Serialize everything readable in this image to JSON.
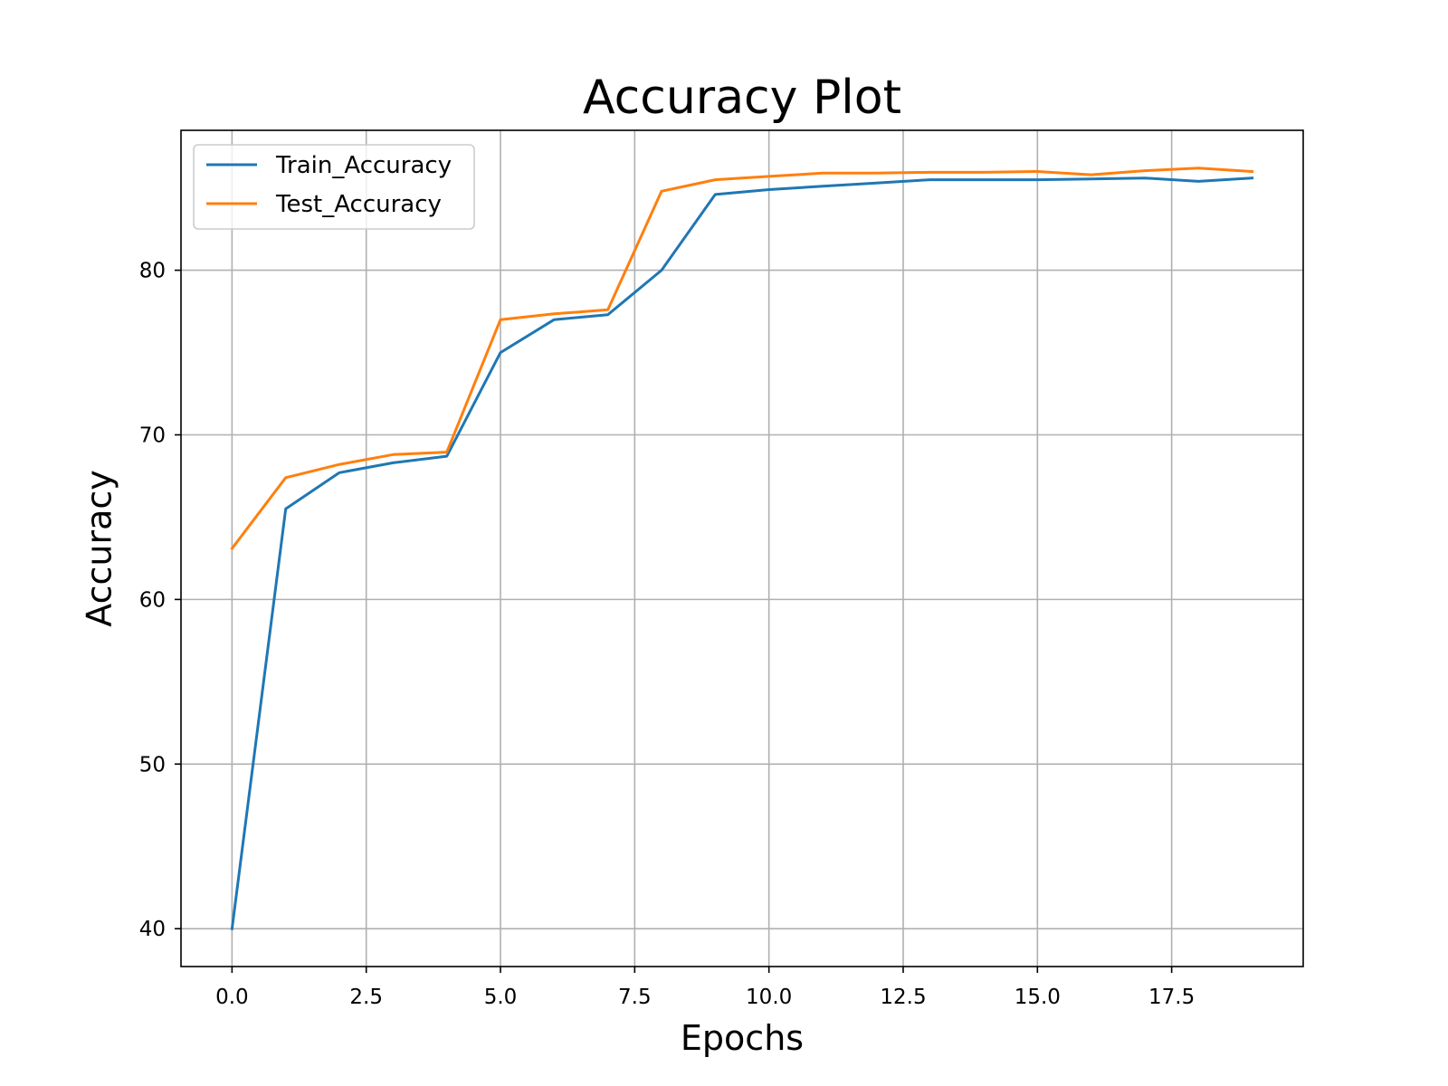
{
  "chart_data": {
    "type": "line",
    "title": "Accuracy Plot",
    "xlabel": "Epochs",
    "ylabel": "Accuracy",
    "x": [
      0,
      1,
      2,
      3,
      4,
      5,
      6,
      7,
      8,
      9,
      10,
      11,
      12,
      13,
      14,
      15,
      16,
      17,
      18,
      19
    ],
    "xlim": [
      -0.95,
      19.95
    ],
    "ylim": [
      37.7,
      88.5
    ],
    "xticks": [
      0,
      2.5,
      5,
      7.5,
      10,
      12.5,
      15,
      17.5
    ],
    "xtick_labels": [
      "0.0",
      "2.5",
      "5.0",
      "7.5",
      "10.0",
      "12.5",
      "15.0",
      "17.5"
    ],
    "yticks": [
      40,
      50,
      60,
      70,
      80
    ],
    "ytick_labels": [
      "40",
      "50",
      "60",
      "70",
      "80"
    ],
    "grid": true,
    "legend_position": "top-left",
    "series": [
      {
        "name": "Train_Accuracy",
        "color": "#1f77b4",
        "values": [
          40.0,
          65.5,
          67.7,
          68.3,
          68.7,
          75.0,
          77.0,
          77.3,
          80.0,
          84.6,
          84.9,
          85.1,
          85.3,
          85.5,
          85.5,
          85.5,
          85.55,
          85.6,
          85.4,
          85.6
        ]
      },
      {
        "name": "Test_Accuracy",
        "color": "#ff7f0e",
        "values": [
          63.1,
          67.4,
          68.2,
          68.8,
          68.95,
          77.0,
          77.35,
          77.6,
          84.8,
          85.5,
          85.7,
          85.9,
          85.9,
          85.95,
          85.95,
          86.0,
          85.8,
          86.05,
          86.2,
          86.0
        ]
      }
    ]
  }
}
